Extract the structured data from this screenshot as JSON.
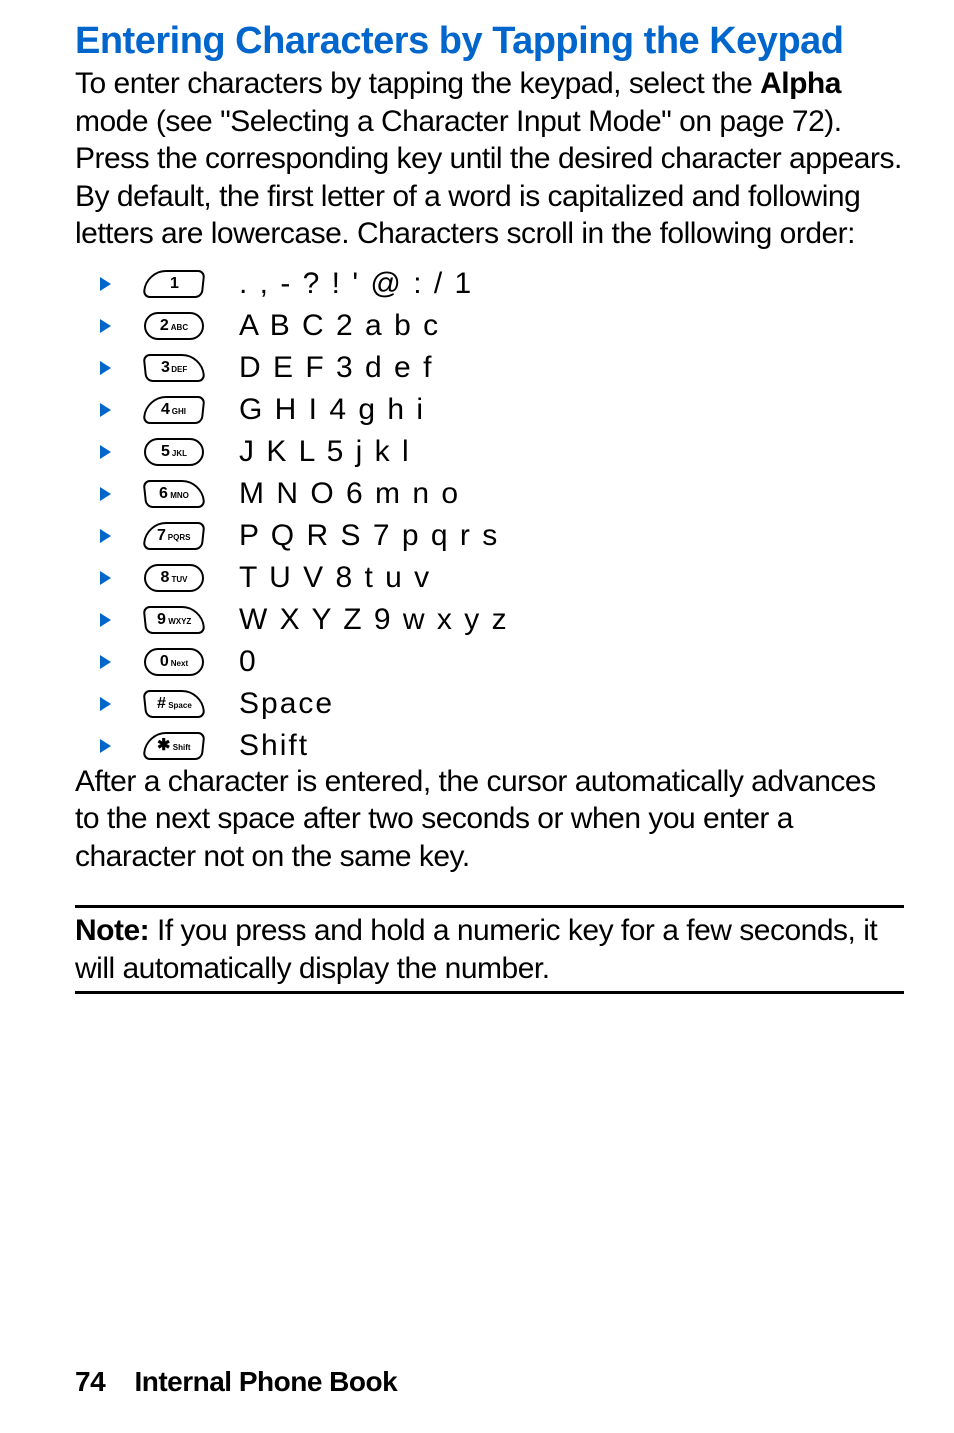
{
  "heading": "Entering Characters by Tapping the Keypad",
  "intro_lines": [
    "To enter characters by tapping the keypad, select the ",
    " mode (see \"Selecting a Character Input Mode\" on page 72). Press the corresponding key until the desired character appears. By default, the first letter of a word is capitalized and following letters are lowercase. Characters scroll in the following order:"
  ],
  "alpha_word": "Alpha",
  "keys": [
    {
      "main": "1",
      "sub": "",
      "shape": "shape-top-left",
      "chars": ". , - ? ! ' @ : / 1"
    },
    {
      "main": "2",
      "sub": "ABC",
      "shape": "shape-pill",
      "chars": "A B C 2 a b c"
    },
    {
      "main": "3",
      "sub": "DEF",
      "shape": "shape-top-right",
      "chars": "D E F 3 d e f"
    },
    {
      "main": "4",
      "sub": "GHI",
      "shape": "shape-top-left",
      "chars": "G H I 4 g h i"
    },
    {
      "main": "5",
      "sub": "JKL",
      "shape": "shape-pill",
      "chars": "J K L 5 j k l"
    },
    {
      "main": "6",
      "sub": "MNO",
      "shape": "shape-top-right",
      "chars": "M N O 6 m n o"
    },
    {
      "main": "7",
      "sub": "PQRS",
      "shape": "shape-top-left",
      "chars": "P Q R S 7 p q r s"
    },
    {
      "main": "8",
      "sub": "TUV",
      "shape": "shape-pill",
      "chars": "T U V 8 t u v"
    },
    {
      "main": "9",
      "sub": "WXYZ",
      "shape": "shape-top-right",
      "chars": "W X Y Z 9 w x y z"
    },
    {
      "main": "0",
      "sub": "Next",
      "shape": "shape-pill",
      "chars": "0"
    },
    {
      "main": "#",
      "sub": "Space",
      "shape": "shape-top-right",
      "chars": "Space"
    },
    {
      "main": "✱",
      "sub": "Shift",
      "shape": "shape-top-left",
      "chars": "Shift"
    }
  ],
  "after_text": "After a character is entered, the cursor automatically advances to the next space after two seconds or when you enter a character not on the same key.",
  "note_label": "Note:",
  "note_text": " If you press and hold a numeric key for a few seconds, it will automatically display the number.",
  "footer_page": "74",
  "footer_title": "Internal Phone Book",
  "colors": {
    "heading": "#0066cc",
    "triangle": "#0066cc",
    "text": "#000000",
    "rule": "#000000",
    "background": "#ffffff"
  }
}
